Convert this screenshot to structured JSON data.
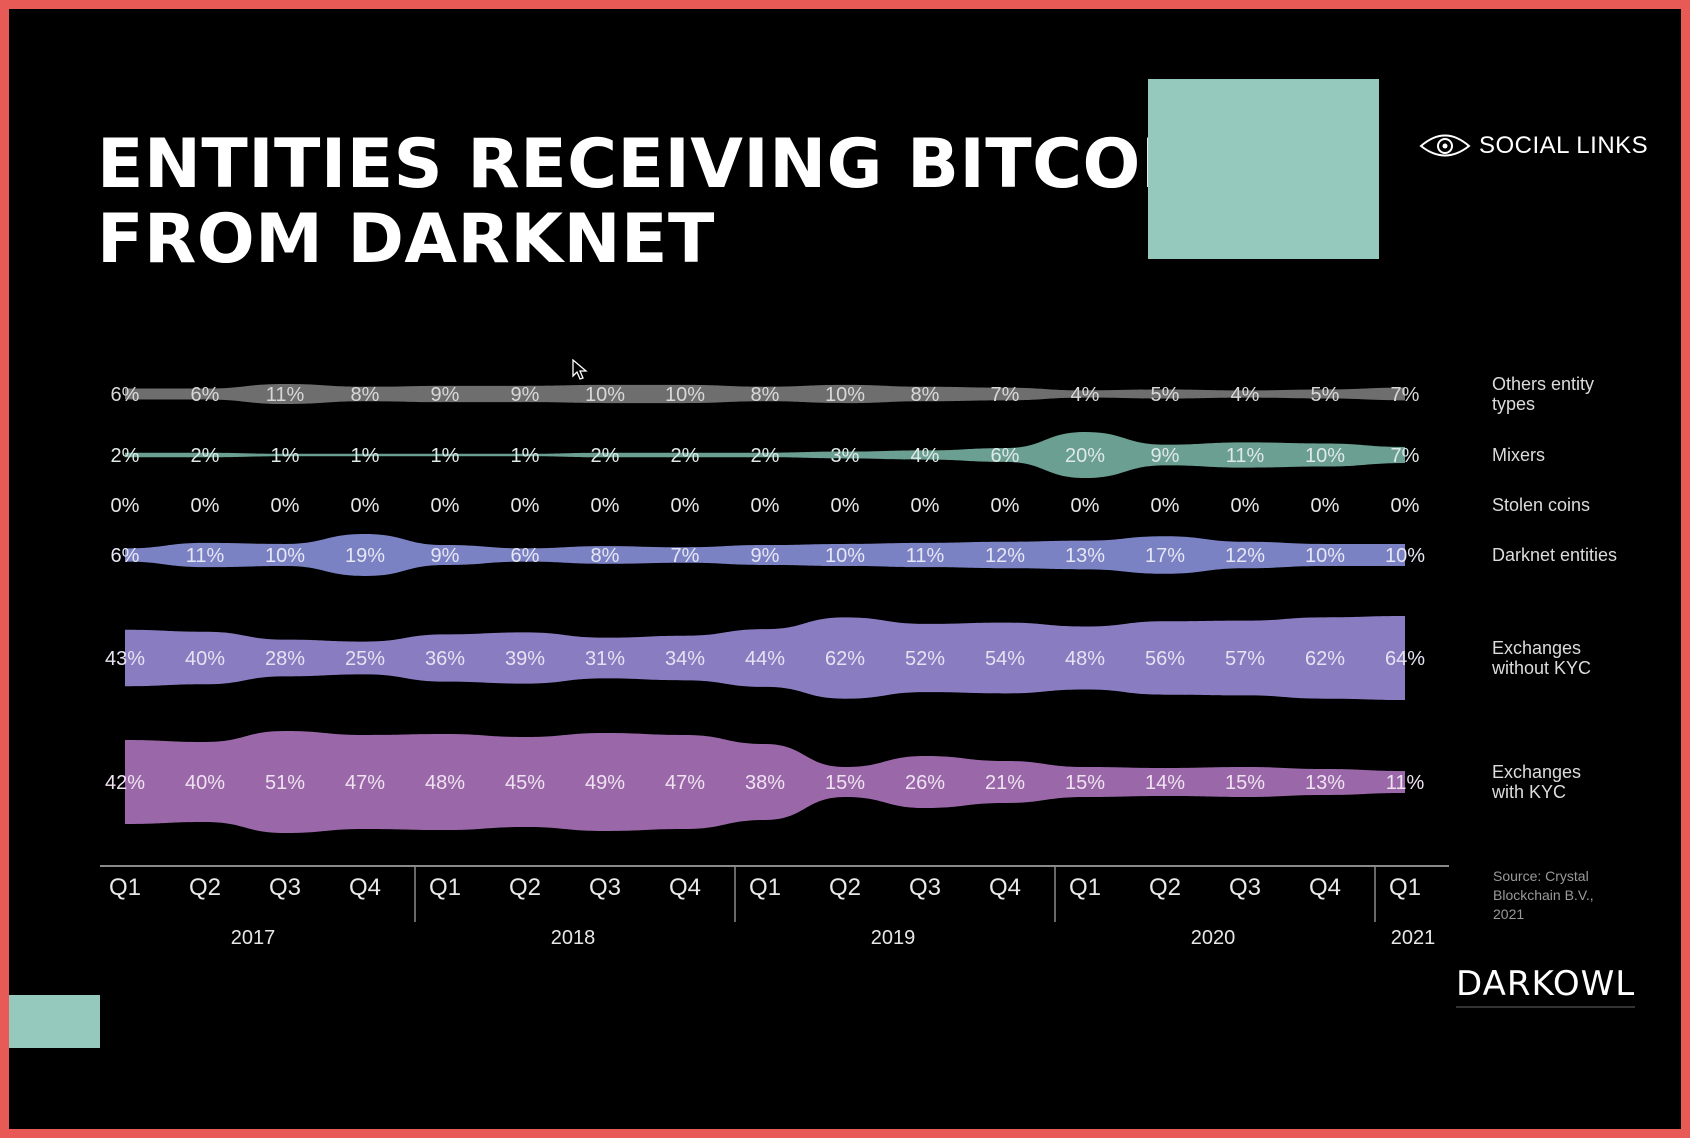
{
  "slide": {
    "title_line1": "ENTITIES RECEIVING BITCOIN",
    "title_line2": "FROM DARKNET",
    "brand_social": "SOCIAL LINKS",
    "brand_darkowl": "DARKOWL",
    "source": "Source: Crystal\nBlockchain B.V.,\n2021",
    "colors": {
      "background": "#000000",
      "frame": "#e85a55",
      "teal": "#95c9bd"
    }
  },
  "chart_data": {
    "type": "area",
    "style": "stream bands",
    "categories": [
      "Q1",
      "Q2",
      "Q3",
      "Q4",
      "Q1",
      "Q2",
      "Q3",
      "Q4",
      "Q1",
      "Q2",
      "Q3",
      "Q4",
      "Q1",
      "Q2",
      "Q3",
      "Q4",
      "Q1"
    ],
    "years": [
      "2017",
      "2018",
      "2019",
      "2020",
      "2021"
    ],
    "series": [
      {
        "name": "Others entity\ntypes",
        "values": [
          6,
          6,
          11,
          8,
          9,
          9,
          10,
          10,
          8,
          10,
          8,
          7,
          4,
          5,
          4,
          5,
          7
        ],
        "labels": [
          "6%",
          "6%",
          "11%",
          "8%",
          "9%",
          "9%",
          "10%",
          "10%",
          "8%",
          "10%",
          "8%",
          "7%",
          "4%",
          "5%",
          "4%",
          "5%",
          "7%"
        ],
        "color": "#6e6e6e"
      },
      {
        "name": "Mixers",
        "values": [
          2,
          2,
          1,
          1,
          1,
          1,
          2,
          2,
          2,
          3,
          4,
          6,
          20,
          9,
          11,
          10,
          7
        ],
        "labels": [
          "2%",
          "2%",
          "1%",
          "1%",
          "1%",
          "1%",
          "2%",
          "2%",
          "2%",
          "3%",
          "4%",
          "6%",
          "20%",
          "9%",
          "11%",
          "10%",
          "7%"
        ],
        "color": "#6a9f91"
      },
      {
        "name": "Stolen coins",
        "values": [
          0,
          0,
          0,
          0,
          0,
          0,
          0,
          0,
          0,
          0,
          0,
          0,
          0,
          0,
          0,
          0,
          0
        ],
        "labels": [
          "0%",
          "0%",
          "0%",
          "0%",
          "0%",
          "0%",
          "0%",
          "0%",
          "0%",
          "0%",
          "0%",
          "0%",
          "0%",
          "0%",
          "0%",
          "0%",
          "0%"
        ],
        "color": "#000000"
      },
      {
        "name": "Darknet entities",
        "values": [
          6,
          11,
          10,
          19,
          9,
          6,
          8,
          7,
          9,
          10,
          11,
          12,
          13,
          17,
          12,
          10,
          10
        ],
        "labels": [
          "6%",
          "11%",
          "10%",
          "19%",
          "9%",
          "6%",
          "8%",
          "7%",
          "9%",
          "10%",
          "11%",
          "12%",
          "13%",
          "17%",
          "12%",
          "10%",
          "10%"
        ],
        "color": "#7a82c4"
      },
      {
        "name": "Exchanges\nwithout KYC",
        "values": [
          43,
          40,
          28,
          25,
          36,
          39,
          31,
          34,
          44,
          62,
          52,
          54,
          48,
          56,
          57,
          62,
          64
        ],
        "labels": [
          "43%",
          "40%",
          "28%",
          "25%",
          "36%",
          "39%",
          "31%",
          "34%",
          "44%",
          "62%",
          "52%",
          "54%",
          "48%",
          "56%",
          "57%",
          "62%",
          "64%"
        ],
        "color": "#8a7cc0"
      },
      {
        "name": "Exchanges\nwith KYC",
        "values": [
          42,
          40,
          51,
          47,
          48,
          45,
          49,
          47,
          38,
          15,
          26,
          21,
          15,
          14,
          15,
          13,
          11
        ],
        "labels": [
          "42%",
          "40%",
          "51%",
          "47%",
          "48%",
          "45%",
          "49%",
          "47%",
          "38%",
          "15%",
          "26%",
          "21%",
          "15%",
          "14%",
          "15%",
          "13%",
          "11%"
        ],
        "color": "#9a68a8"
      }
    ]
  }
}
